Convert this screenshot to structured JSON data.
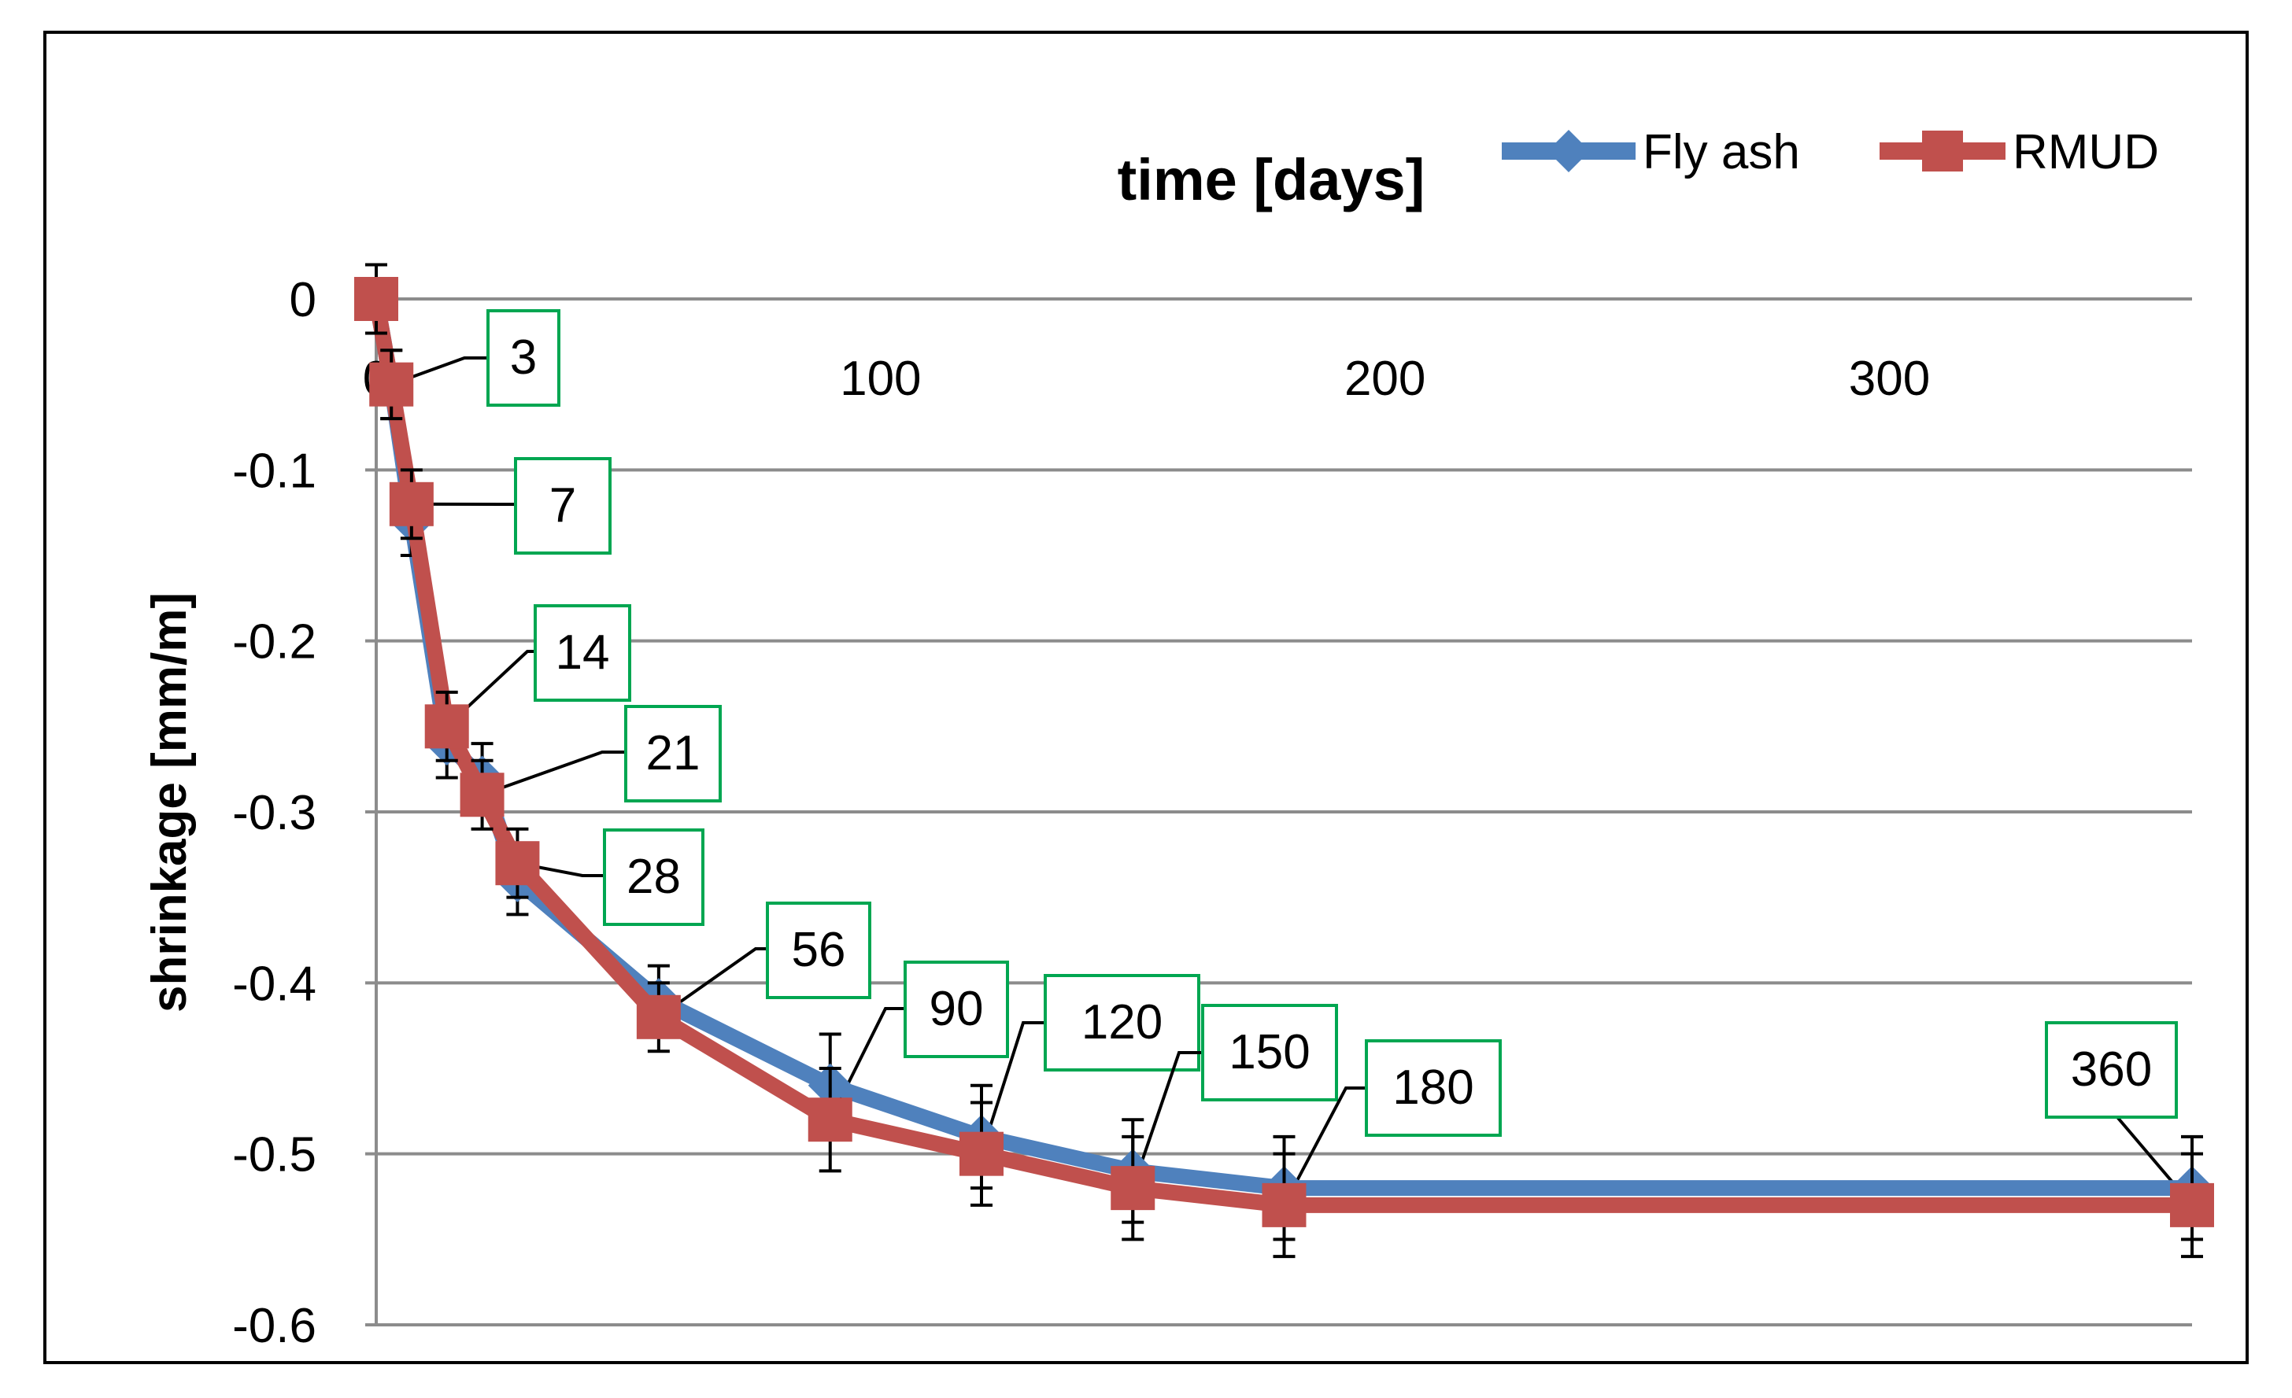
{
  "chart_data": {
    "type": "line",
    "title": "time [days]",
    "xlabel": "time [days]",
    "ylabel": "shrinkage [mm/m]",
    "xlim": [
      0,
      360
    ],
    "ylim": [
      -0.6,
      0
    ],
    "x_ticks": [
      0,
      100,
      200,
      300
    ],
    "y_ticks": [
      0,
      -0.1,
      -0.2,
      -0.3,
      -0.4,
      -0.5,
      -0.6
    ],
    "y_tick_labels": [
      "0",
      "-0.1",
      "-0.2",
      "-0.3",
      "-0.4",
      "-0.5",
      "-0.6"
    ],
    "grid": true,
    "legend_position": "top-right",
    "x": [
      0,
      3,
      7,
      14,
      21,
      28,
      56,
      90,
      120,
      150,
      180,
      360
    ],
    "series": [
      {
        "name": "Fly ash",
        "color": "#4f81bd",
        "marker": "diamond",
        "values": [
          0,
          -0.05,
          -0.13,
          -0.26,
          -0.28,
          -0.34,
          -0.41,
          -0.46,
          -0.49,
          -0.51,
          -0.52,
          -0.52
        ],
        "error": [
          0.02,
          0.02,
          0.02,
          0.02,
          0.02,
          0.02,
          0.02,
          0.03,
          0.03,
          0.03,
          0.03,
          0.03
        ]
      },
      {
        "name": "RMUD",
        "color": "#c0504d",
        "marker": "square",
        "values": [
          0,
          -0.05,
          -0.12,
          -0.25,
          -0.29,
          -0.33,
          -0.42,
          -0.48,
          -0.5,
          -0.52,
          -0.53,
          -0.53
        ],
        "error": [
          0.02,
          0.02,
          0.02,
          0.02,
          0.02,
          0.02,
          0.02,
          0.03,
          0.03,
          0.03,
          0.03,
          0.03
        ]
      }
    ],
    "annotations": [
      {
        "text": "3",
        "x": 3
      },
      {
        "text": "7",
        "x": 7
      },
      {
        "text": "14",
        "x": 14
      },
      {
        "text": "21",
        "x": 21
      },
      {
        "text": "28",
        "x": 28
      },
      {
        "text": "56",
        "x": 56
      },
      {
        "text": "90",
        "x": 90
      },
      {
        "text": "120",
        "x": 120
      },
      {
        "text": "150",
        "x": 150
      },
      {
        "text": "180",
        "x": 180
      },
      {
        "text": "360",
        "x": 360
      }
    ]
  }
}
